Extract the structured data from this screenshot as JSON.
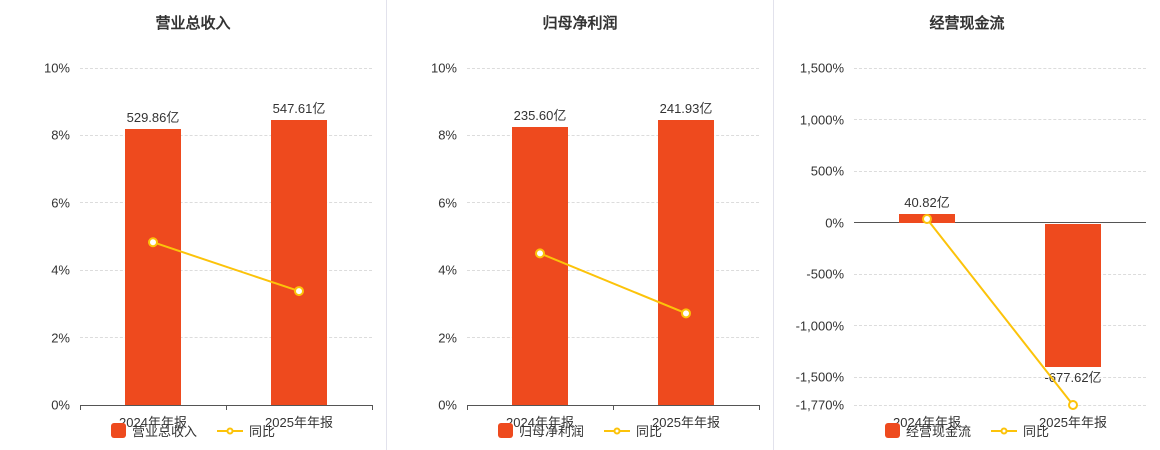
{
  "colors": {
    "bar": "#ee4a1e",
    "line": "#fcc30a",
    "text": "#333333",
    "grid": "#dcdcdc",
    "axis": "#555555",
    "separator": "#e2e2ec"
  },
  "chart_data": [
    {
      "type": "bar",
      "title": "营业总收入",
      "categories": [
        "2024年年报",
        "2025年年报"
      ],
      "series": [
        {
          "name": "营业总收入",
          "kind": "bar",
          "value_labels": [
            "529.86亿",
            "547.61亿"
          ],
          "axis_values": [
            8.2,
            8.45
          ]
        },
        {
          "name": "同比",
          "kind": "line",
          "axis_values": [
            4.83,
            3.38
          ]
        }
      ],
      "y_axis": {
        "min": 0,
        "max": 10,
        "ticks": [
          "10%",
          "8%",
          "6%",
          "4%",
          "2%",
          "0%"
        ],
        "tick_values": [
          10,
          8,
          6,
          4,
          2,
          0
        ]
      },
      "legend_position": "bottom",
      "grid": true
    },
    {
      "type": "bar",
      "title": "归母净利润",
      "categories": [
        "2024年年报",
        "2025年年报"
      ],
      "series": [
        {
          "name": "归母净利润",
          "kind": "bar",
          "value_labels": [
            "235.60亿",
            "241.93亿"
          ],
          "axis_values": [
            8.25,
            8.45
          ]
        },
        {
          "name": "同比",
          "kind": "line",
          "axis_values": [
            4.5,
            2.72
          ]
        }
      ],
      "y_axis": {
        "min": 0,
        "max": 10,
        "ticks": [
          "10%",
          "8%",
          "6%",
          "4%",
          "2%",
          "0%"
        ],
        "tick_values": [
          10,
          8,
          6,
          4,
          2,
          0
        ]
      },
      "legend_position": "bottom",
      "grid": true
    },
    {
      "type": "bar",
      "title": "经营现金流",
      "categories": [
        "2024年年报",
        "2025年年报"
      ],
      "series": [
        {
          "name": "经营现金流",
          "kind": "bar",
          "value_labels": [
            "40.82亿",
            "-677.62亿"
          ],
          "axis_values": [
            85,
            -1390
          ]
        },
        {
          "name": "同比",
          "kind": "line",
          "axis_values": [
            35,
            -1770
          ]
        }
      ],
      "y_axis": {
        "min": -1770,
        "max": 1500,
        "ticks": [
          "1,500%",
          "1,000%",
          "500%",
          "0%",
          "-500%",
          "-1,000%",
          "-1,500%",
          "-1,770%"
        ],
        "tick_values": [
          1500,
          1000,
          500,
          0,
          -500,
          -1000,
          -1500,
          -1770
        ]
      },
      "legend_position": "bottom",
      "grid": true
    }
  ]
}
